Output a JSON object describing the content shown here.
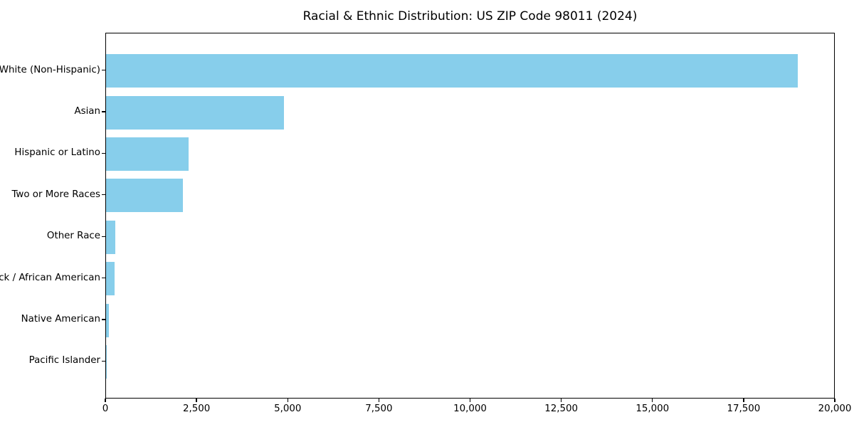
{
  "chart_data": {
    "type": "bar",
    "orientation": "horizontal",
    "title": "Racial & Ethnic Distribution: US ZIP Code 98011 (2024)",
    "categories": [
      "White (Non-Hispanic)",
      "Asian",
      "Hispanic or Latino",
      "Two or More Races",
      "Other Race",
      "Black / African American",
      "Native American",
      "Pacific Islander"
    ],
    "values": [
      19000,
      4890,
      2270,
      2120,
      255,
      235,
      70,
      10
    ],
    "xlabel": "",
    "ylabel": "",
    "xlim": [
      0,
      20000
    ],
    "x_ticks": [
      0,
      2500,
      5000,
      7500,
      10000,
      12500,
      15000,
      17500,
      20000
    ],
    "x_tick_labels": [
      "0",
      "2,500",
      "5,000",
      "7,500",
      "10,000",
      "12,500",
      "15,000",
      "17,500",
      "20,000"
    ],
    "bar_color": "#87CEEB",
    "axis_color": "#000000",
    "background_color": "#ffffff",
    "grid": false,
    "legend": false
  }
}
